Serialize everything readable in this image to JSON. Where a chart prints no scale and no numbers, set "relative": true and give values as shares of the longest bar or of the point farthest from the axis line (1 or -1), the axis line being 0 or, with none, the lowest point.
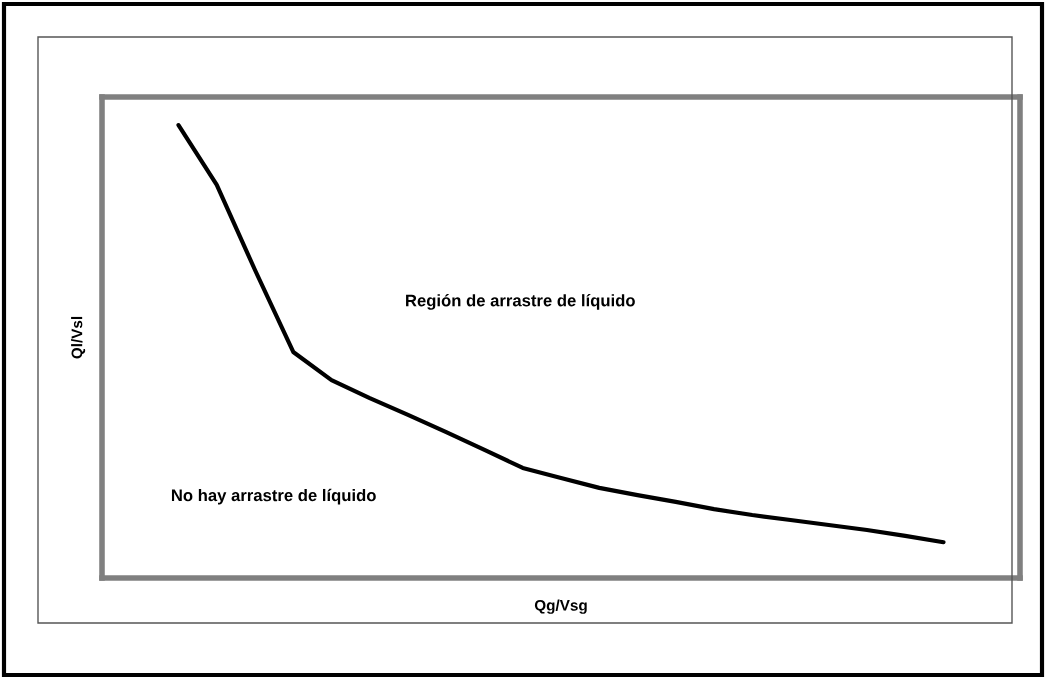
{
  "chart_data": {
    "type": "line",
    "relative": true,
    "xlabel": "Qg/Vsg",
    "ylabel": "Ql/Vsl",
    "categories": [
      null,
      null,
      null,
      null,
      null,
      null,
      null,
      null,
      null,
      null,
      null,
      null,
      null,
      null,
      null,
      null,
      null,
      null,
      null,
      null,
      null,
      null,
      null,
      null,
      null
    ],
    "series": [
      {
        "color": "#000000",
        "values": [
          null,
          null,
          1.0,
          0.868,
          0.68,
          0.499,
          0.437,
          0.397,
          0.36,
          0.322,
          0.283,
          0.243,
          0.221,
          0.199,
          0.183,
          0.168,
          0.152,
          0.139,
          0.128,
          0.117,
          0.106,
          0.093,
          0.079,
          null,
          null
        ]
      }
    ],
    "annotations": [
      "Región de arrastre de líquido",
      "No hay arrastre de líquido"
    ],
    "grid": false,
    "marker": "none",
    "line_style": "solid"
  }
}
